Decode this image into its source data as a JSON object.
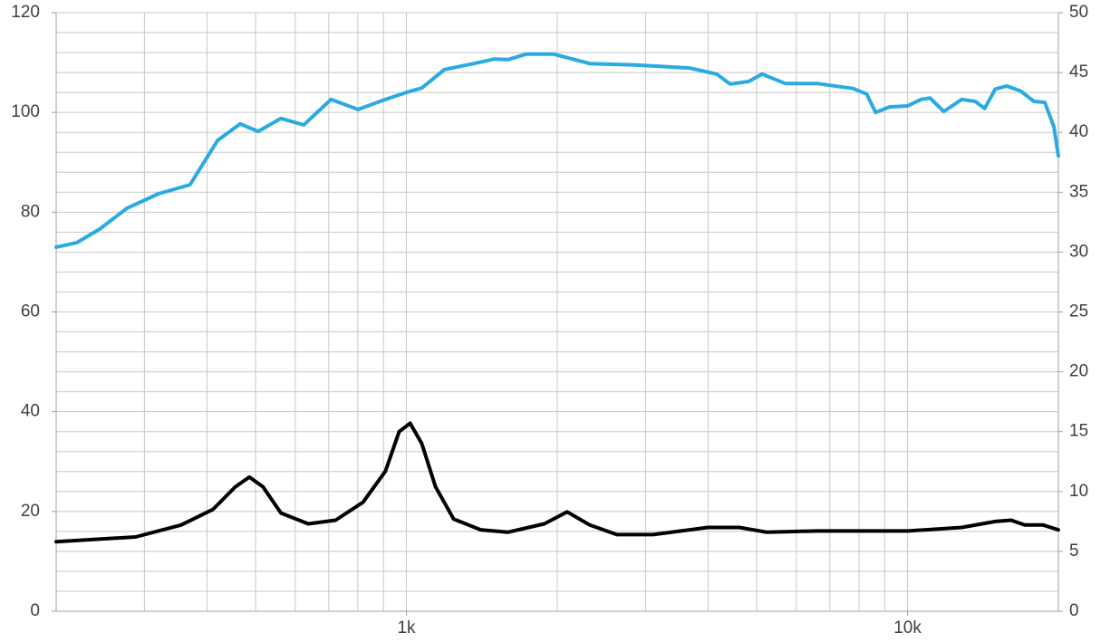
{
  "chart_data": {
    "type": "line",
    "xscale": "log",
    "xlim": [
      200,
      20000
    ],
    "xticks": [
      {
        "value": 1000,
        "label": "1k"
      },
      {
        "value": 10000,
        "label": "10k"
      }
    ],
    "xgrid": [
      200,
      300,
      400,
      500,
      600,
      700,
      800,
      900,
      1000,
      2000,
      3000,
      4000,
      5000,
      6000,
      7000,
      8000,
      9000,
      10000,
      20000
    ],
    "ylim": [
      0,
      120
    ],
    "yticks": [
      0,
      20,
      40,
      60,
      80,
      100,
      120
    ],
    "ygrid": [
      0,
      4,
      8,
      12,
      16,
      20,
      24,
      28,
      32,
      36,
      40,
      44,
      48,
      52,
      56,
      60,
      64,
      68,
      72,
      76,
      80,
      84,
      88,
      92,
      96,
      100,
      104,
      108,
      112,
      116,
      120
    ],
    "y2lim": [
      0,
      50
    ],
    "y2ticks": [
      0,
      5,
      10,
      15,
      20,
      25,
      30,
      35,
      40,
      45,
      50
    ],
    "grid": true,
    "series": [
      {
        "color": "#29abe2",
        "axis": "y",
        "x": [
          200,
          220,
          244,
          277,
          320,
          370,
          394,
          420,
          466,
          506,
          562,
          624,
          707,
          801,
          908,
          1000,
          1073,
          1191,
          1350,
          1499,
          1596,
          1735,
          1964,
          2322,
          2863,
          3676,
          4160,
          4427,
          4818,
          5128,
          5699,
          6588,
          7785,
          8286,
          8640,
          9204,
          10000,
          10637,
          11090,
          11809,
          12824,
          13660,
          14250,
          14970,
          15790,
          16810,
          17880,
          18800,
          19600,
          20000
        ],
        "values": [
          73.0,
          73.9,
          76.6,
          80.8,
          83.7,
          85.5,
          89.9,
          94.4,
          97.7,
          96.2,
          98.8,
          97.5,
          102.6,
          100.6,
          102.6,
          104.0,
          104.9,
          108.6,
          109.7,
          110.7,
          110.6,
          111.7,
          111.7,
          109.8,
          109.5,
          108.9,
          107.7,
          105.7,
          106.2,
          107.7,
          105.8,
          105.8,
          104.8,
          103.7,
          100.0,
          101.1,
          101.3,
          102.6,
          102.9,
          100.2,
          102.6,
          102.2,
          100.8,
          104.7,
          105.3,
          104.3,
          102.2,
          102.0,
          97.1,
          91.3
        ]
      },
      {
        "color": "#000000",
        "axis": "y2",
        "x": [
          200,
          288,
          355,
          411,
          456,
          486,
          517,
          562,
          637,
          722,
          819,
          908,
          967,
          1017,
          1073,
          1143,
          1242,
          1407,
          1596,
          1884,
          2093,
          2322,
          2630,
          3106,
          3995,
          4614,
          5233,
          6588,
          7785,
          10000,
          12824,
          14970,
          16100,
          17140,
          18640,
          20000
        ],
        "values": [
          5.8,
          6.2,
          7.2,
          8.5,
          10.4,
          11.2,
          10.4,
          8.2,
          7.3,
          7.6,
          9.1,
          11.7,
          15.0,
          15.7,
          14.0,
          10.4,
          7.7,
          6.8,
          6.6,
          7.3,
          8.3,
          7.2,
          6.4,
          6.4,
          7.0,
          7.0,
          6.6,
          6.7,
          6.7,
          6.7,
          7.0,
          7.5,
          7.6,
          7.2,
          7.2,
          6.8
        ]
      }
    ]
  }
}
